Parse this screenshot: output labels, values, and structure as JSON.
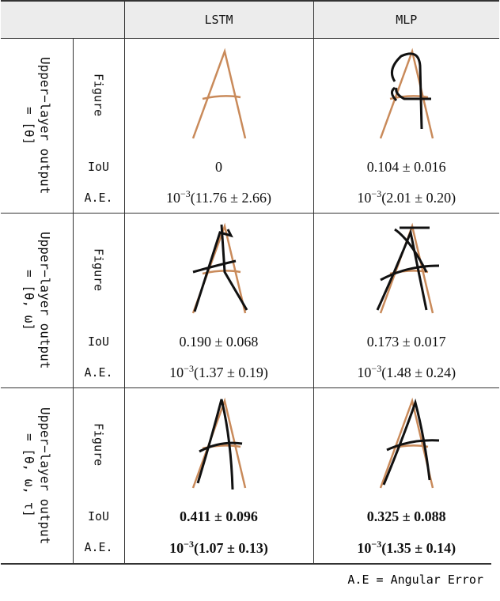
{
  "table": {
    "header": [
      "LSTM",
      "MLP"
    ],
    "groups": [
      {
        "label": [
          "Upper−layer output",
          "= [θ]"
        ],
        "figure_label": "Figure",
        "iou_label": "IoU",
        "ae_label": "A.E.",
        "iou": [
          "0",
          "0.104 ± 0.016"
        ],
        "ae": [
          {
            "base": "10",
            "exp": "−3",
            "rest": "(11.76 ± 2.66)"
          },
          {
            "base": "10",
            "exp": "−3",
            "rest": "(2.01 ± 0.20)"
          }
        ]
      },
      {
        "label": [
          "Upper−layer output",
          "= [θ, ω]"
        ],
        "figure_label": "Figure",
        "iou_label": "IoU",
        "ae_label": "A.E.",
        "iou": [
          "0.190 ± 0.068",
          "0.173 ± 0.017"
        ],
        "ae": [
          {
            "base": "10",
            "exp": "−3",
            "rest": "(1.37 ± 0.19)"
          },
          {
            "base": "10",
            "exp": "−3",
            "rest": "(1.48 ± 0.24)"
          }
        ]
      },
      {
        "label": [
          "Upper−layer output",
          "= [θ, ω, τ]"
        ],
        "figure_label": "Figure",
        "iou_label": "IoU",
        "ae_label": "A.E.",
        "iou": [
          "0.411 ± 0.096",
          "0.325 ± 0.088"
        ],
        "ae": [
          {
            "base": "10",
            "exp": "−3",
            "rest": "(1.07 ± 0.13)"
          },
          {
            "base": "10",
            "exp": "−3",
            "rest": "(1.35 ± 0.14)"
          }
        ]
      }
    ],
    "footnote": "A.E = Angular Error"
  }
}
